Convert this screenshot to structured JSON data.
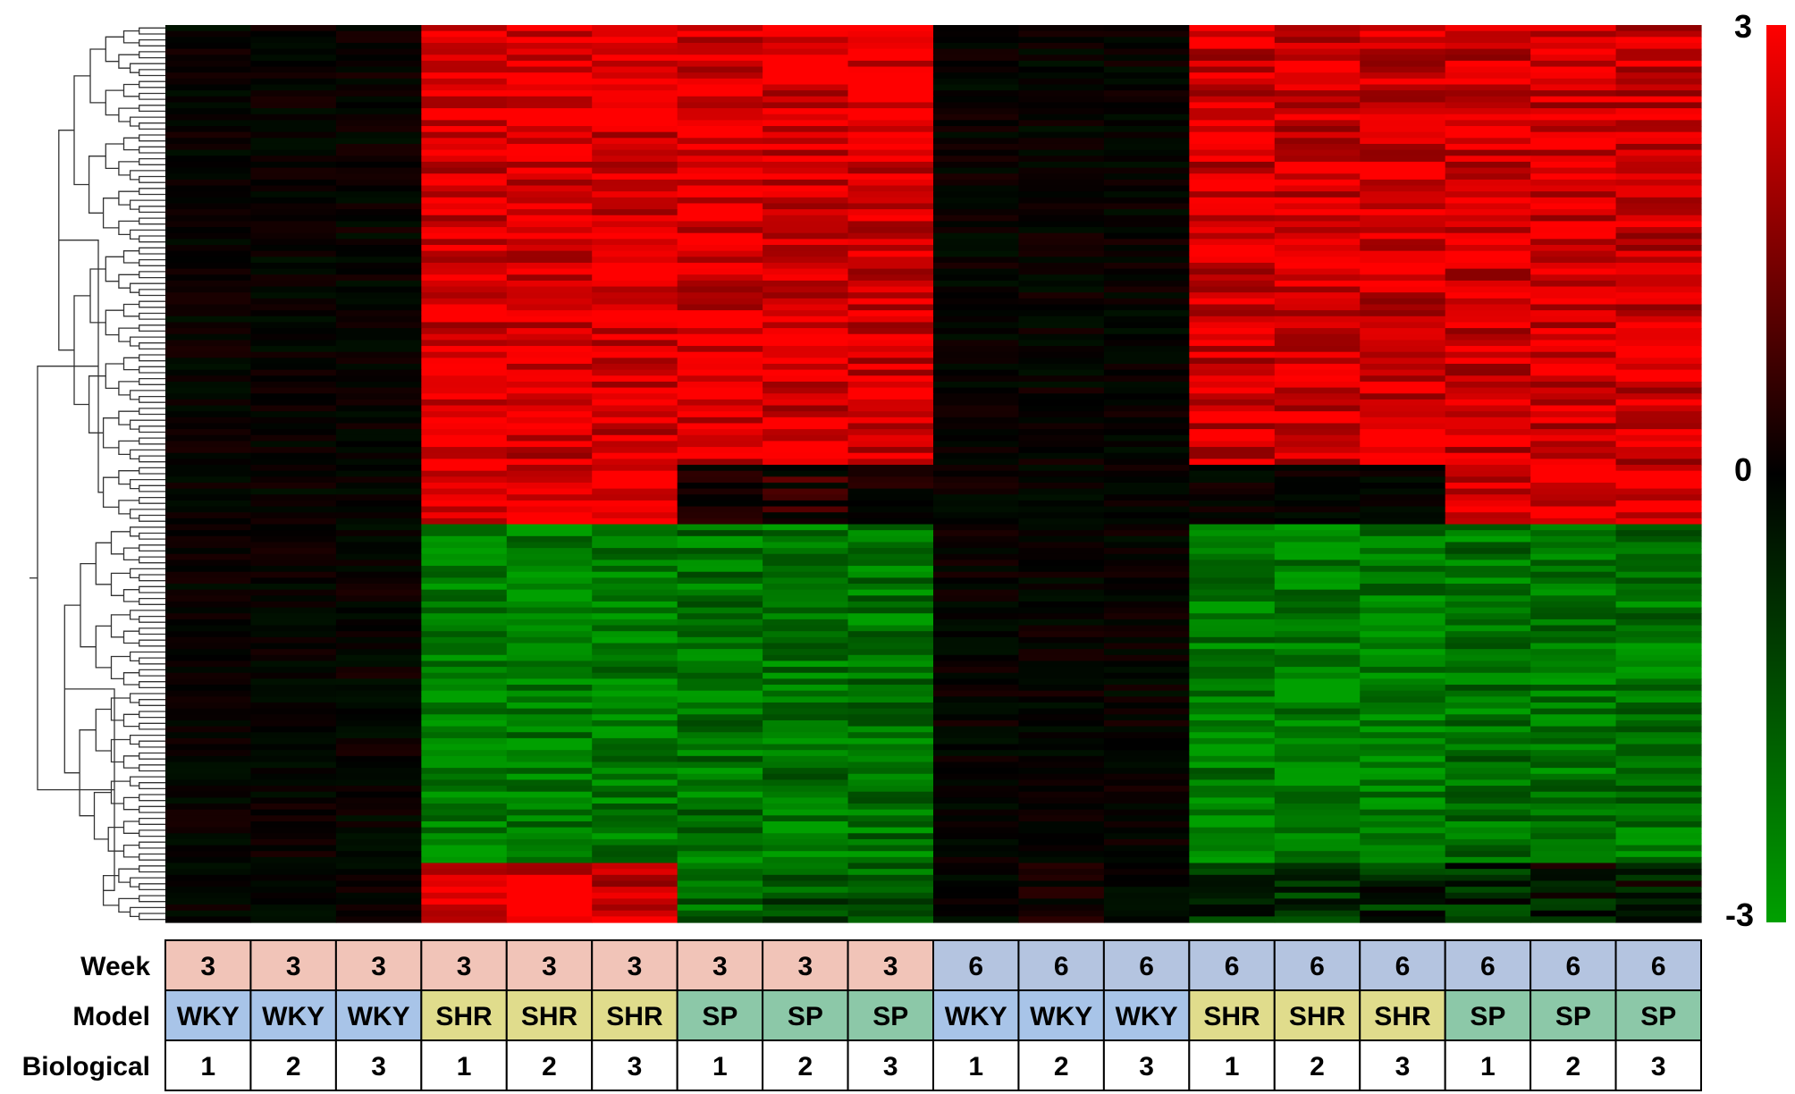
{
  "chart_data": {
    "type": "heatmap",
    "title": "",
    "color_scale": {
      "min": -3,
      "mid": 0,
      "max": 3,
      "min_label": "-3",
      "mid_label": "0",
      "max_label": "3",
      "low_color": "#00a000",
      "mid_color": "#000000",
      "high_color": "#ff0000"
    },
    "annotation_rows": [
      {
        "label": "Week",
        "values": [
          "3",
          "3",
          "3",
          "3",
          "3",
          "3",
          "3",
          "3",
          "3",
          "6",
          "6",
          "6",
          "6",
          "6",
          "6",
          "6",
          "6",
          "6"
        ]
      },
      {
        "label": "Model",
        "values": [
          "WKY",
          "WKY",
          "WKY",
          "SHR",
          "SHR",
          "SHR",
          "SP",
          "SP",
          "SP",
          "WKY",
          "WKY",
          "WKY",
          "SHR",
          "SHR",
          "SHR",
          "SP",
          "SP",
          "SP"
        ]
      },
      {
        "label": "Biological",
        "values": [
          "1",
          "2",
          "3",
          "1",
          "2",
          "3",
          "1",
          "2",
          "3",
          "1",
          "2",
          "3",
          "1",
          "2",
          "3",
          "1",
          "2",
          "3"
        ]
      }
    ],
    "annotation_colors": {
      "3": "#f1c4b8",
      "6": "#b4c4e0",
      "WKY": "#a8c4e8",
      "SHR": "#e0dc8c",
      "SP": "#8cc8a8",
      "biological": "#ffffff"
    },
    "row_blocks": [
      {
        "rows": 74,
        "values": [
          0,
          0,
          0,
          2.6,
          2.6,
          2.6,
          2.6,
          2.6,
          2.6,
          0,
          0,
          0,
          2.5,
          2.5,
          2.5,
          2.5,
          2.5,
          2.5
        ]
      },
      {
        "rows": 10,
        "values": [
          0,
          0,
          0,
          2.6,
          2.6,
          2.6,
          0.2,
          0.5,
          0.2,
          0,
          0,
          0,
          0,
          0,
          0,
          2.7,
          2.7,
          2.7
        ]
      },
      {
        "rows": 57,
        "values": [
          0,
          0,
          0,
          -2.4,
          -2.4,
          -2.4,
          -2.2,
          -2.2,
          -2.2,
          0,
          0,
          0,
          -2.4,
          -2.4,
          -2.4,
          -2.2,
          -2.2,
          -2.2
        ]
      },
      {
        "rows": 10,
        "values": [
          0,
          0,
          0,
          2.3,
          2.6,
          2.2,
          -2.0,
          -1.5,
          -1.8,
          0,
          0.2,
          0,
          -0.8,
          -0.8,
          -0.8,
          -0.8,
          -0.5,
          -0.5
        ]
      }
    ]
  }
}
